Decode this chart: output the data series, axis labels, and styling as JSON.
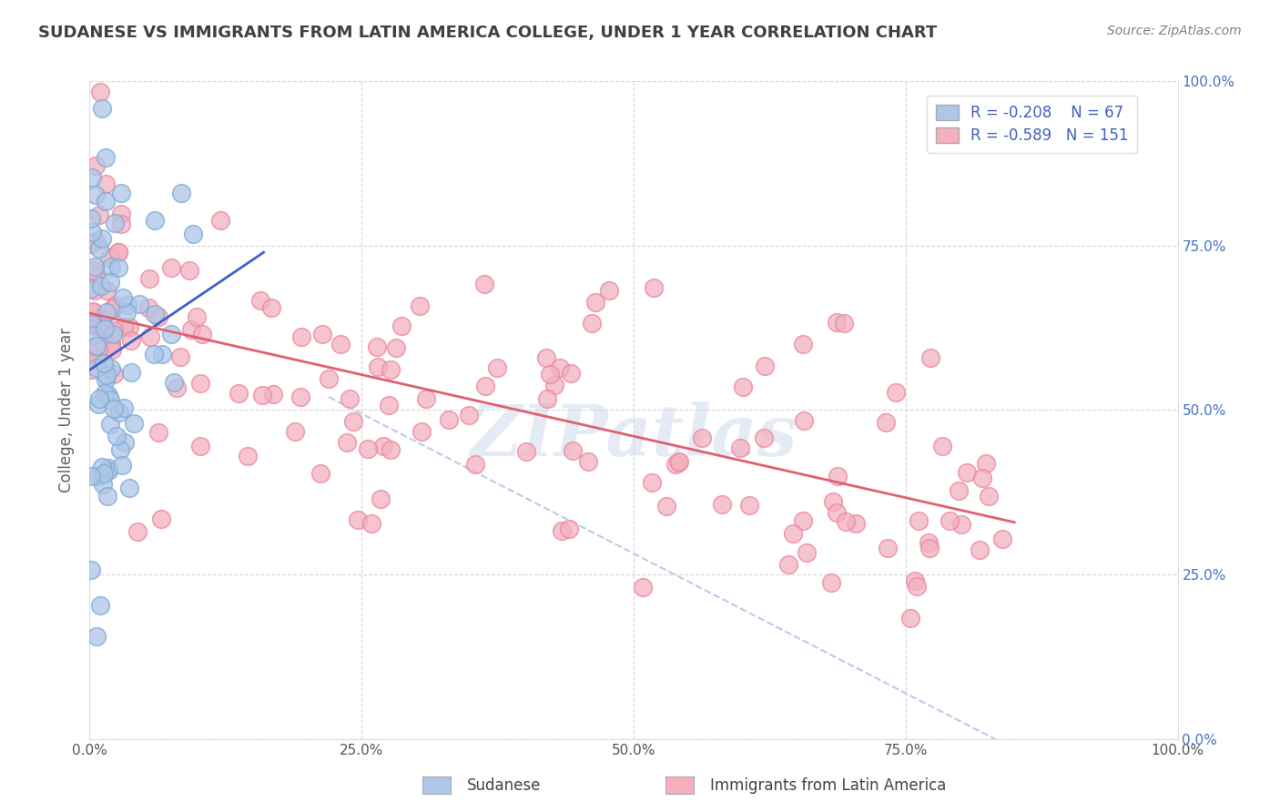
{
  "title": "SUDANESE VS IMMIGRANTS FROM LATIN AMERICA COLLEGE, UNDER 1 YEAR CORRELATION CHART",
  "source_text": "Source: ZipAtlas.com",
  "ylabel": "College, Under 1 year",
  "legend_label1": "Sudanese",
  "legend_label2": "Immigrants from Latin America",
  "R1": -0.208,
  "N1": 67,
  "R2": -0.589,
  "N2": 151,
  "color1_face": "#aec6e8",
  "color1_edge": "#7aaad4",
  "color2_face": "#f4b0be",
  "color2_edge": "#e888a0",
  "line_color1": "#4060c8",
  "line_color2": "#e06070",
  "dashed_line_color": "#b8cce8",
  "background_color": "#ffffff",
  "grid_color": "#cccccc",
  "xlim": [
    0,
    1
  ],
  "ylim": [
    0,
    1
  ],
  "right_ytick_labels": [
    "100.0%",
    "75.0%",
    "50.0%",
    "25.0%",
    "0.0%"
  ],
  "right_ytick_values": [
    1.0,
    0.75,
    0.5,
    0.25,
    0.0
  ],
  "xtick_labels": [
    "0.0%",
    "25.0%",
    "50.0%",
    "75.0%",
    "100.0%"
  ],
  "xtick_values": [
    0,
    0.25,
    0.5,
    0.75,
    1.0
  ],
  "watermark": "ZIPatlas",
  "title_color": "#404040",
  "source_color": "#808080",
  "axis_label_color": "#606060",
  "right_tick_color": "#4472c4",
  "legend_R_color": "#e05060",
  "legend_N_color": "#303030"
}
